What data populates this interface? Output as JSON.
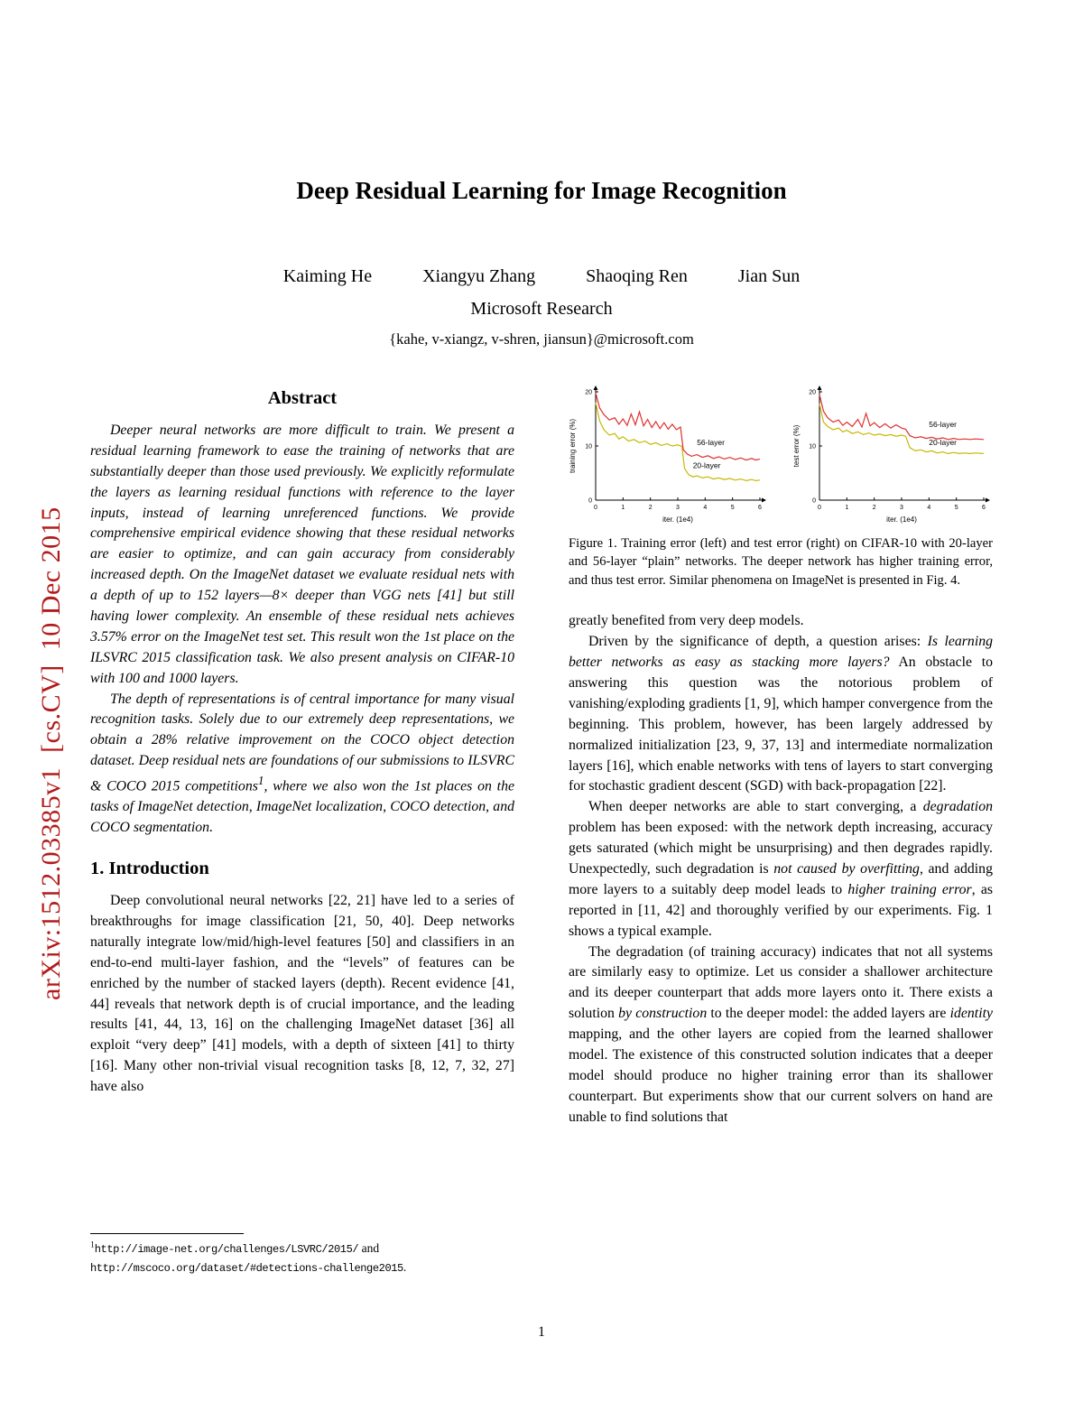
{
  "page": {
    "number": "1"
  },
  "arxiv_stamp": {
    "text": "arXiv:1512.03385v1  [cs.CV]  10 Dec 2015",
    "color": "#b31b1b"
  },
  "header": {
    "title": "Deep Residual Learning for Image Recognition",
    "authors": [
      "Kaiming He",
      "Xiangyu Zhang",
      "Shaoqing Ren",
      "Jian Sun"
    ],
    "affiliation": "Microsoft Research",
    "emails": "{kahe, v-xiangz, v-shren, jiansun}@microsoft.com"
  },
  "abstract": {
    "heading": "Abstract",
    "paragraphs": [
      "Deeper neural networks are more difficult to train. We present a residual learning framework to ease the training of networks that are substantially deeper than those used previously. We explicitly reformulate the layers as learning residual functions with reference to the layer inputs, instead of learning unreferenced functions. We provide comprehensive empirical evidence showing that these residual networks are easier to optimize, and can gain accuracy from considerably increased depth. On the ImageNet dataset we evaluate residual nets with a depth of up to 152 layers—8× deeper than VGG nets [41] but still having lower complexity. An ensemble of these residual nets achieves 3.57% error on the ImageNet test set. This result won the 1st place on the ILSVRC 2015 classification task. We also present analysis on CIFAR-10 with 100 and 1000 layers.",
      "The depth of representations is of central importance for many visual recognition tasks. Solely due to our extremely deep representations, we obtain a 28% relative improvement on the COCO object detection dataset. Deep residual nets are foundations of our submissions to ILSVRC &amp; COCO 2015 competitions<sup>1</sup>, where we also won the 1st places on the tasks of ImageNet detection, ImageNet localization, COCO detection, and COCO segmentation."
    ]
  },
  "sections": {
    "introduction": {
      "heading": "1. Introduction",
      "paragraphs": [
        "Deep convolutional neural networks [22, 21] have led to a series of breakthroughs for image classification [21, 50, 40]. Deep networks naturally integrate low/mid/high-level features [50] and classifiers in an end-to-end multi-layer fashion, and the “levels” of features can be enriched by the number of stacked layers (depth). Recent evidence [41, 44] reveals that network depth is of crucial importance, and the leading results [41, 44, 13, 16] on the challenging ImageNet dataset [36] all exploit “very deep” [41] models, with a depth of sixteen [41] to thirty [16]. Many other non-trivial visual recognition tasks [8, 12, 7, 32, 27] have also"
      ]
    }
  },
  "footnote": {
    "html": "<sup>1</sup><span class=\"tt\">http://image-net.org/challenges/LSVRC/2015/</span> and <span class=\"tt\">http://mscoco.org/dataset/#detections-challenge2015</span>."
  },
  "figure": {
    "caption": "Figure 1. Training error (left) and test error (right) on CIFAR-10 with 20-layer and 56-layer “plain” networks. The deeper network has higher training error, and thus test error. Similar phenomena on ImageNet is presented in Fig. 4."
  },
  "right_column": {
    "paragraphs": [
      "greatly benefited from very deep models.",
      "Driven by the significance of depth, a question arises: <i>Is learning better networks as easy as stacking more layers?</i> An obstacle to answering this question was the notorious problem of vanishing/exploding gradients [1, 9], which hamper convergence from the beginning. This problem, however, has been largely addressed by normalized initialization [23, 9, 37, 13] and intermediate normalization layers [16], which enable networks with tens of layers to start converging for stochastic gradient descent (SGD) with back-propagation [22].",
      "When deeper networks are able to start converging, a <i>degradation</i> problem has been exposed: with the network depth increasing, accuracy gets saturated (which might be unsurprising) and then degrades rapidly. Unexpectedly, such degradation is <i>not caused by overfitting</i>, and adding more layers to a suitably deep model leads to <i>higher training error</i>, as reported in [11, 42] and thoroughly verified by our experiments. Fig. 1 shows a typical example.",
      "The degradation (of training accuracy) indicates that not all systems are similarly easy to optimize. Let us consider a shallower architecture and its deeper counterpart that adds more layers onto it. There exists a solution <i>by construction</i> to the deeper model: the added layers are <i>identity</i> mapping, and the other layers are copied from the learned shallower model. The existence of this constructed solution indicates that a deeper model should produce no higher training error than its shallower counterpart. But experiments show that our current solvers on hand are unable to find solutions that"
    ]
  },
  "chart_data": [
    {
      "type": "line",
      "title": "",
      "ylabel": "training error (%)",
      "xlabel": "iter. (1e4)",
      "xlim": [
        0,
        6
      ],
      "ylim": [
        0,
        20
      ],
      "xticks": [
        0,
        1,
        2,
        3,
        4,
        5,
        6
      ],
      "yticks": [
        0,
        10,
        20
      ],
      "grid": false,
      "legend_position": "in-plot-labels",
      "series": [
        {
          "name": "56-layer",
          "color": "#e03030",
          "points": [
            [
              0,
              19.8
            ],
            [
              0.15,
              17.0
            ],
            [
              0.3,
              15.8
            ],
            [
              0.5,
              14.8
            ],
            [
              0.7,
              15.2
            ],
            [
              0.85,
              14.0
            ],
            [
              1.0,
              15.0
            ],
            [
              1.15,
              13.8
            ],
            [
              1.3,
              15.9
            ],
            [
              1.45,
              13.9
            ],
            [
              1.6,
              16.3
            ],
            [
              1.75,
              13.7
            ],
            [
              1.9,
              14.9
            ],
            [
              2.05,
              13.4
            ],
            [
              2.2,
              14.5
            ],
            [
              2.35,
              13.2
            ],
            [
              2.5,
              14.3
            ],
            [
              2.65,
              13.1
            ],
            [
              2.8,
              14.0
            ],
            [
              2.95,
              13.0
            ],
            [
              3.1,
              13.5
            ],
            [
              3.2,
              9.3
            ],
            [
              3.35,
              8.5
            ],
            [
              3.5,
              8.1
            ],
            [
              3.7,
              8.4
            ],
            [
              3.9,
              7.9
            ],
            [
              4.1,
              8.2
            ],
            [
              4.3,
              7.7
            ],
            [
              4.5,
              8.0
            ],
            [
              4.7,
              7.6
            ],
            [
              4.9,
              7.9
            ],
            [
              5.1,
              7.5
            ],
            [
              5.3,
              7.8
            ],
            [
              5.5,
              7.4
            ],
            [
              5.7,
              7.7
            ],
            [
              5.85,
              7.4
            ],
            [
              6,
              7.6
            ]
          ]
        },
        {
          "name": "20-layer",
          "color": "#c7b800",
          "points": [
            [
              0,
              18.0
            ],
            [
              0.15,
              14.6
            ],
            [
              0.3,
              13.0
            ],
            [
              0.5,
              12.0
            ],
            [
              0.7,
              12.3
            ],
            [
              0.85,
              11.3
            ],
            [
              1.0,
              11.7
            ],
            [
              1.2,
              10.9
            ],
            [
              1.4,
              11.2
            ],
            [
              1.6,
              10.6
            ],
            [
              1.8,
              10.9
            ],
            [
              2.0,
              10.3
            ],
            [
              2.2,
              10.6
            ],
            [
              2.4,
              10.1
            ],
            [
              2.6,
              10.4
            ],
            [
              2.8,
              10.0
            ],
            [
              3.0,
              10.2
            ],
            [
              3.15,
              9.9
            ],
            [
              3.25,
              5.8
            ],
            [
              3.4,
              4.7
            ],
            [
              3.55,
              4.3
            ],
            [
              3.7,
              4.5
            ],
            [
              3.9,
              4.1
            ],
            [
              4.1,
              4.3
            ],
            [
              4.3,
              3.9
            ],
            [
              4.5,
              4.1
            ],
            [
              4.7,
              3.8
            ],
            [
              4.9,
              4.0
            ],
            [
              5.1,
              3.7
            ],
            [
              5.3,
              3.9
            ],
            [
              5.5,
              3.6
            ],
            [
              5.7,
              3.8
            ],
            [
              5.85,
              3.6
            ],
            [
              6,
              3.7
            ]
          ]
        }
      ],
      "annotations": [
        {
          "text": "56-layer",
          "x": 3.7,
          "y": 10.2
        },
        {
          "text": "20-layer",
          "x": 3.55,
          "y": 5.9
        }
      ]
    },
    {
      "type": "line",
      "title": "",
      "ylabel": "test error (%)",
      "xlabel": "iter. (1e4)",
      "xlim": [
        0,
        6
      ],
      "ylim": [
        0,
        20
      ],
      "xticks": [
        0,
        1,
        2,
        3,
        4,
        5,
        6
      ],
      "yticks": [
        0,
        10,
        20
      ],
      "grid": false,
      "legend_position": "in-plot-labels",
      "series": [
        {
          "name": "56-layer",
          "color": "#e03030",
          "points": [
            [
              0,
              19.5
            ],
            [
              0.15,
              16.4
            ],
            [
              0.3,
              15.2
            ],
            [
              0.5,
              14.4
            ],
            [
              0.7,
              14.8
            ],
            [
              0.85,
              13.8
            ],
            [
              1.0,
              14.4
            ],
            [
              1.2,
              13.6
            ],
            [
              1.4,
              14.9
            ],
            [
              1.55,
              13.5
            ],
            [
              1.7,
              16.0
            ],
            [
              1.85,
              13.7
            ],
            [
              2.0,
              14.3
            ],
            [
              2.2,
              13.4
            ],
            [
              2.4,
              14.1
            ],
            [
              2.6,
              13.3
            ],
            [
              2.8,
              13.9
            ],
            [
              3.0,
              13.3
            ],
            [
              3.15,
              13.1
            ],
            [
              3.3,
              11.9
            ],
            [
              3.5,
              11.5
            ],
            [
              3.7,
              11.7
            ],
            [
              3.9,
              11.4
            ],
            [
              4.1,
              11.6
            ],
            [
              4.3,
              11.3
            ],
            [
              4.5,
              11.5
            ],
            [
              4.7,
              11.2
            ],
            [
              4.9,
              11.4
            ],
            [
              5.1,
              11.2
            ],
            [
              5.3,
              11.3
            ],
            [
              5.5,
              11.2
            ],
            [
              5.7,
              11.3
            ],
            [
              6,
              11.2
            ]
          ]
        },
        {
          "name": "20-layer",
          "color": "#c7b800",
          "points": [
            [
              0,
              17.8
            ],
            [
              0.15,
              14.4
            ],
            [
              0.3,
              13.6
            ],
            [
              0.5,
              13.0
            ],
            [
              0.7,
              13.3
            ],
            [
              0.85,
              12.6
            ],
            [
              1.0,
              12.9
            ],
            [
              1.2,
              12.3
            ],
            [
              1.4,
              12.6
            ],
            [
              1.6,
              12.1
            ],
            [
              1.8,
              12.4
            ],
            [
              2.0,
              12.0
            ],
            [
              2.2,
              12.2
            ],
            [
              2.4,
              11.9
            ],
            [
              2.6,
              12.1
            ],
            [
              2.8,
              11.8
            ],
            [
              3.0,
              12.0
            ],
            [
              3.15,
              11.8
            ],
            [
              3.3,
              9.7
            ],
            [
              3.5,
              9.1
            ],
            [
              3.7,
              9.3
            ],
            [
              3.9,
              8.9
            ],
            [
              4.1,
              9.1
            ],
            [
              4.3,
              8.7
            ],
            [
              4.5,
              8.9
            ],
            [
              4.7,
              8.6
            ],
            [
              4.9,
              8.8
            ],
            [
              5.1,
              8.6
            ],
            [
              5.3,
              8.7
            ],
            [
              5.5,
              8.6
            ],
            [
              5.7,
              8.7
            ],
            [
              6,
              8.6
            ]
          ]
        }
      ],
      "annotations": [
        {
          "text": "56-layer",
          "x": 4.0,
          "y": 13.5
        },
        {
          "text": "20-layer",
          "x": 4.0,
          "y": 10.2
        }
      ]
    }
  ]
}
